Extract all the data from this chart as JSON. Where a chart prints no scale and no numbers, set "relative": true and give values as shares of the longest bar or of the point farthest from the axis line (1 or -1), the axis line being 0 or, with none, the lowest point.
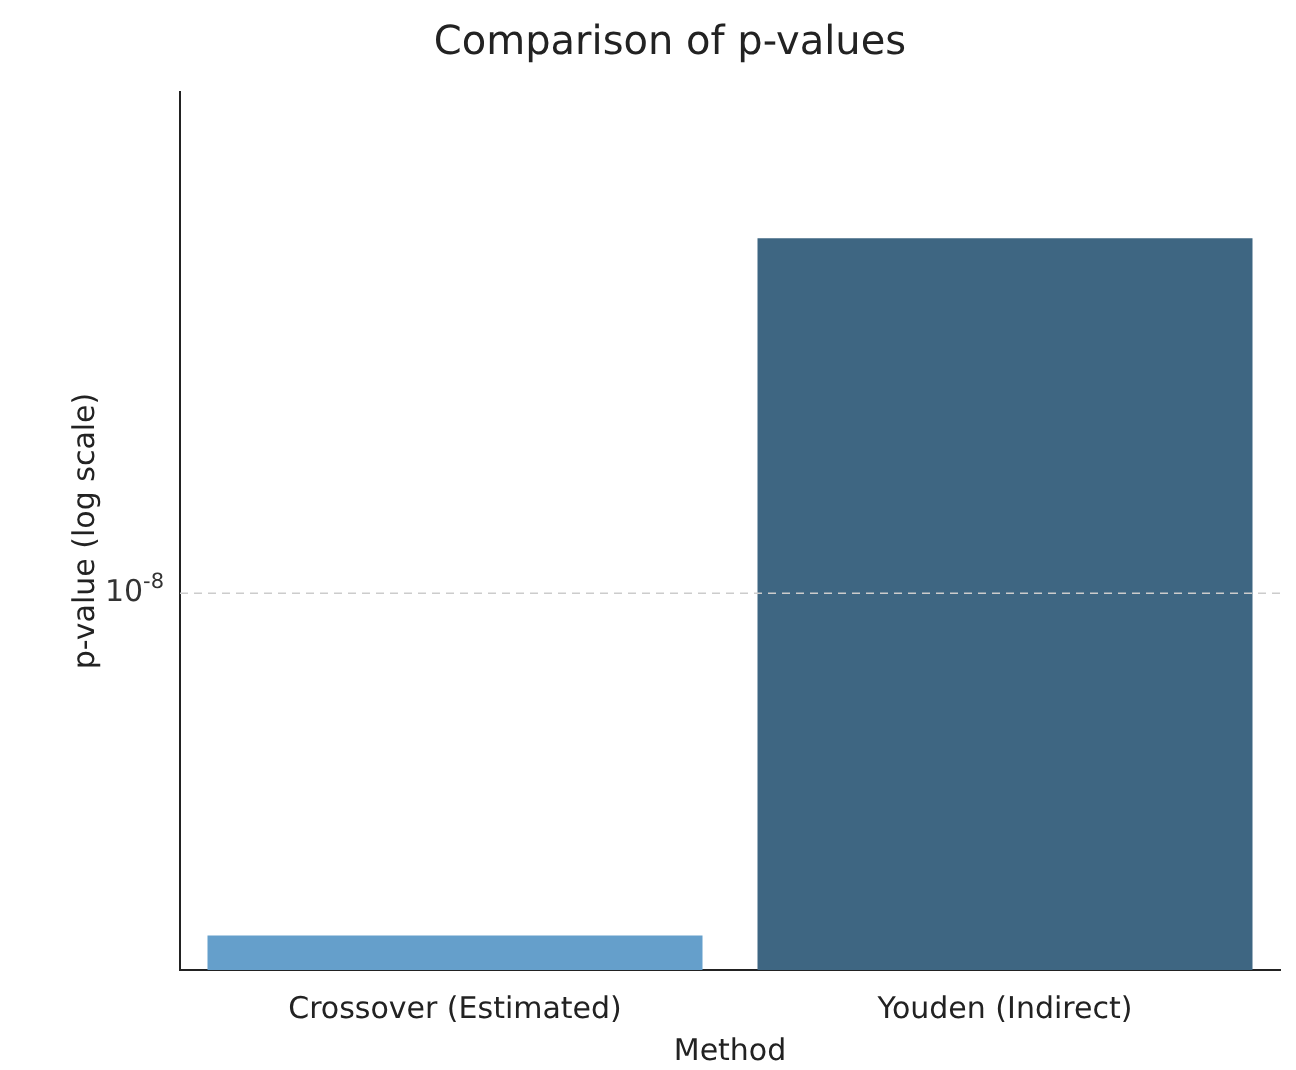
{
  "chart_data": {
    "type": "bar",
    "title": "Comparison of p-values",
    "xlabel": "Method",
    "ylabel": "p-value (log scale)",
    "categories": [
      "Crossover (Estimated)",
      "Youden (Indirect)"
    ],
    "values": [
      0.047,
      1
    ],
    "colors": [
      "#659fcb",
      "#3e6682"
    ],
    "relative": true,
    "annotations": [
      "10$^{-8}$"
    ],
    "ref_lines": [
      {
        "axis": "y",
        "value": 0.515,
        "color": "#cccccc",
        "line_style": "dashed"
      }
    ]
  }
}
